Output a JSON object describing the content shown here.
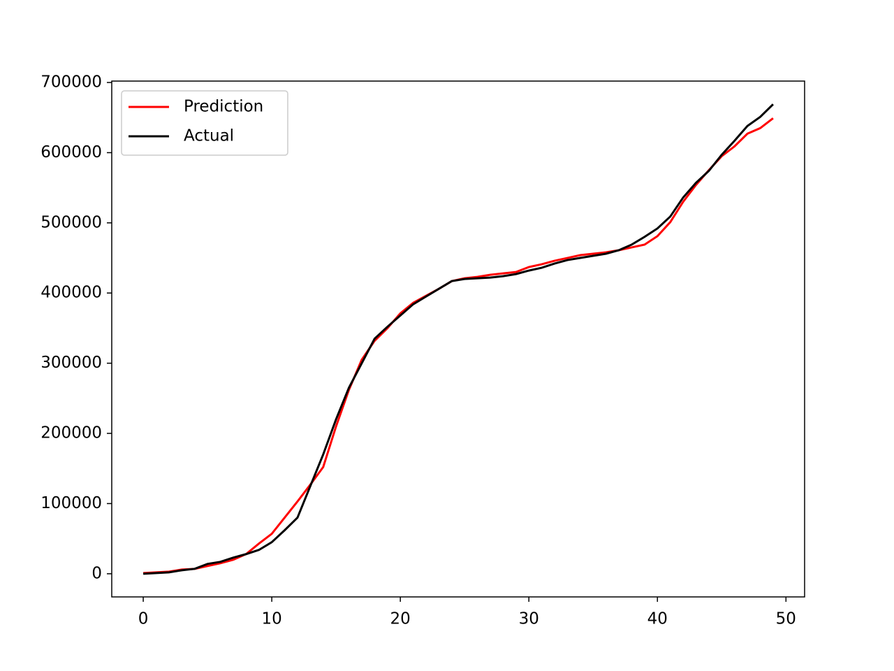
{
  "chart_data": {
    "type": "line",
    "x": [
      0,
      1,
      2,
      3,
      4,
      5,
      6,
      7,
      8,
      9,
      10,
      11,
      12,
      13,
      14,
      15,
      16,
      17,
      18,
      19,
      20,
      21,
      22,
      23,
      24,
      25,
      26,
      27,
      28,
      29,
      30,
      31,
      32,
      33,
      34,
      35,
      36,
      37,
      38,
      39,
      40,
      41,
      42,
      43,
      44,
      45,
      46,
      47,
      48,
      49
    ],
    "series": [
      {
        "name": "Prediction",
        "color": "#ff0000",
        "values": [
          1000,
          2000,
          3000,
          6000,
          7000,
          11000,
          15000,
          20000,
          28000,
          43000,
          57000,
          80000,
          103000,
          127000,
          152000,
          210000,
          262000,
          305000,
          332000,
          350000,
          371000,
          386000,
          396000,
          406000,
          417000,
          421000,
          423000,
          426000,
          428000,
          430000,
          437000,
          441000,
          446000,
          450000,
          454000,
          456000,
          458000,
          461000,
          465000,
          469000,
          481000,
          501000,
          530000,
          554000,
          575000,
          595000,
          609000,
          627000,
          635000,
          649000
        ]
      },
      {
        "name": "Actual",
        "color": "#000000",
        "values": [
          0,
          1000,
          2000,
          5000,
          7000,
          14000,
          17000,
          23000,
          28000,
          34000,
          45000,
          62000,
          80000,
          125000,
          170000,
          220000,
          265000,
          300000,
          335000,
          352000,
          368000,
          384000,
          395000,
          406000,
          417000,
          420000,
          421000,
          422000,
          424000,
          427000,
          432000,
          436000,
          442000,
          447000,
          450000,
          453000,
          456000,
          461000,
          469000,
          480000,
          492000,
          509000,
          536000,
          557000,
          574000,
          597000,
          617000,
          638000,
          651000,
          669000
        ]
      }
    ],
    "xlim": [
      -2.45,
      51.45
    ],
    "xticks": [
      0,
      10,
      20,
      30,
      40,
      50
    ],
    "ylim": [
      -33000,
      702000
    ],
    "yticks": [
      0,
      100000,
      200000,
      300000,
      400000,
      500000,
      600000,
      700000
    ],
    "legend": "upper left"
  }
}
